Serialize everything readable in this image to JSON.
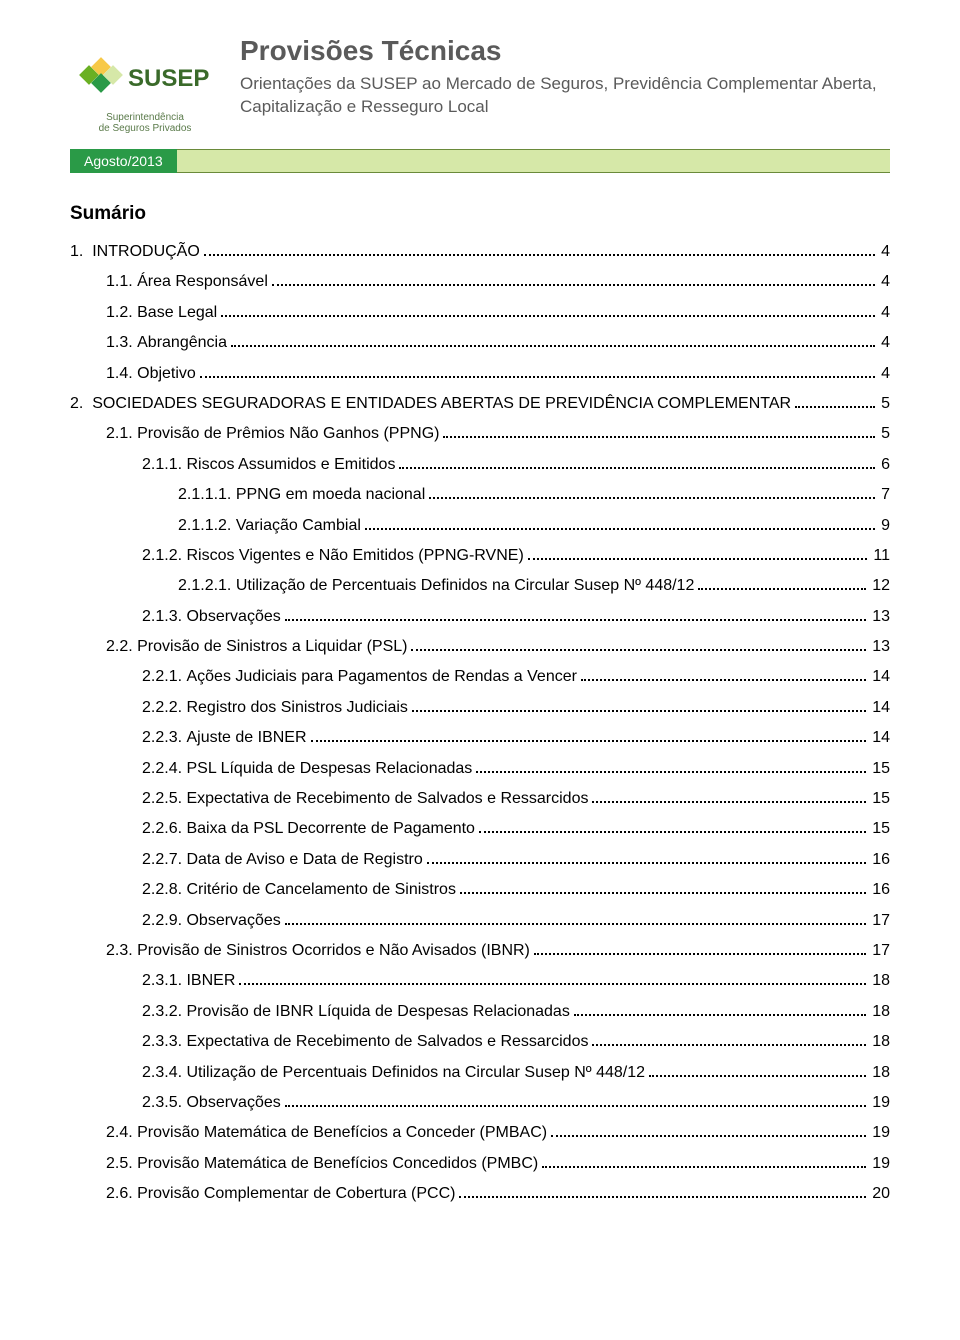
{
  "header": {
    "logo_text_main": "SUSEP",
    "logo_caption_line1": "Superintendência",
    "logo_caption_line2": "de Seguros Privados",
    "title": "Provisões Técnicas",
    "subtitle": "Orientações da SUSEP ao Mercado de Seguros, Previdência Complementar Aberta, Capitalização e Resseguro Local",
    "date_label": "Agosto/2013"
  },
  "sumario_title": "Sumário",
  "colors": {
    "header_text": "#5a5a5a",
    "green_dark": "#2a9a47",
    "green_light": "#d6e8a8",
    "green_border": "#6a8a3a",
    "logo_green": "#5a7a4a",
    "text": "#000000",
    "background": "#ffffff"
  },
  "toc": [
    {
      "indent": 0,
      "num": "1.",
      "label": "INTRODUÇÃO",
      "page": "4"
    },
    {
      "indent": 1,
      "num": "1.1.",
      "label": "Área Responsável",
      "page": "4"
    },
    {
      "indent": 1,
      "num": "1.2.",
      "label": "Base Legal",
      "page": "4"
    },
    {
      "indent": 1,
      "num": "1.3.",
      "label": "Abrangência",
      "page": "4"
    },
    {
      "indent": 1,
      "num": "1.4.",
      "label": "Objetivo",
      "page": "4"
    },
    {
      "indent": 0,
      "num": "2.",
      "label": "SOCIEDADES SEGURADORAS E ENTIDADES ABERTAS DE PREVIDÊNCIA COMPLEMENTAR",
      "page": "5"
    },
    {
      "indent": 1,
      "num": "2.1.",
      "label": "Provisão de Prêmios Não Ganhos (PPNG)",
      "page": "5"
    },
    {
      "indent": 2,
      "num": "2.1.1.",
      "label": "Riscos Assumidos e Emitidos",
      "page": "6"
    },
    {
      "indent": 3,
      "num": "2.1.1.1.",
      "label": "PPNG em moeda nacional",
      "page": "7"
    },
    {
      "indent": 3,
      "num": "2.1.1.2.",
      "label": "Variação Cambial",
      "page": "9"
    },
    {
      "indent": 2,
      "num": "2.1.2.",
      "label": "Riscos Vigentes e Não Emitidos (PPNG-RVNE)",
      "page": "11"
    },
    {
      "indent": 3,
      "num": "2.1.2.1.",
      "label": "Utilização de Percentuais Definidos na Circular Susep Nº 448/12",
      "page": "12"
    },
    {
      "indent": 2,
      "num": "2.1.3.",
      "label": "Observações",
      "page": "13"
    },
    {
      "indent": 1,
      "num": "2.2.",
      "label": "Provisão de Sinistros a Liquidar (PSL)",
      "page": "13"
    },
    {
      "indent": 2,
      "num": "2.2.1.",
      "label": "Ações Judiciais para Pagamentos de Rendas a Vencer",
      "page": "14"
    },
    {
      "indent": 2,
      "num": "2.2.2.",
      "label": "Registro dos Sinistros Judiciais",
      "page": "14"
    },
    {
      "indent": 2,
      "num": "2.2.3.",
      "label": "Ajuste de IBNER",
      "page": "14"
    },
    {
      "indent": 2,
      "num": "2.2.4.",
      "label": "PSL Líquida de Despesas Relacionadas",
      "page": "15"
    },
    {
      "indent": 2,
      "num": "2.2.5.",
      "label": "Expectativa de Recebimento de Salvados e Ressarcidos",
      "page": "15"
    },
    {
      "indent": 2,
      "num": "2.2.6.",
      "label": "Baixa da PSL Decorrente de Pagamento",
      "page": "15"
    },
    {
      "indent": 2,
      "num": "2.2.7.",
      "label": "Data de Aviso e Data de Registro",
      "page": "16"
    },
    {
      "indent": 2,
      "num": "2.2.8.",
      "label": "Critério de Cancelamento de Sinistros",
      "page": "16"
    },
    {
      "indent": 2,
      "num": "2.2.9.",
      "label": "Observações",
      "page": "17"
    },
    {
      "indent": 1,
      "num": "2.3.",
      "label": "Provisão de Sinistros Ocorridos e Não Avisados (IBNR)",
      "page": "17"
    },
    {
      "indent": 2,
      "num": "2.3.1.",
      "label": "IBNER",
      "page": "18"
    },
    {
      "indent": 2,
      "num": "2.3.2.",
      "label": "Provisão de IBNR Líquida de Despesas Relacionadas",
      "page": "18"
    },
    {
      "indent": 2,
      "num": "2.3.3.",
      "label": "Expectativa de Recebimento de Salvados e Ressarcidos",
      "page": "18"
    },
    {
      "indent": 2,
      "num": "2.3.4.",
      "label": "Utilização de Percentuais Definidos na Circular Susep Nº 448/12",
      "page": "18"
    },
    {
      "indent": 2,
      "num": "2.3.5.",
      "label": "Observações",
      "page": "19"
    },
    {
      "indent": 1,
      "num": "2.4.",
      "label": "Provisão Matemática de Benefícios a Conceder (PMBAC)",
      "page": "19"
    },
    {
      "indent": 1,
      "num": "2.5.",
      "label": "Provisão Matemática de Benefícios Concedidos (PMBC)",
      "page": "19"
    },
    {
      "indent": 1,
      "num": "2.6.",
      "label": "Provisão Complementar de Cobertura (PCC)",
      "page": "20"
    }
  ]
}
